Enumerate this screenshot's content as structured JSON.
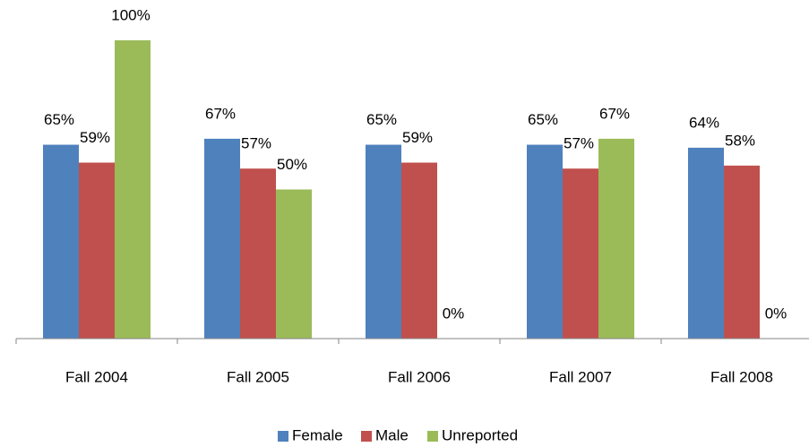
{
  "chart_data": {
    "type": "bar",
    "categories": [
      "Fall 2004",
      "Fall 2005",
      "Fall 2006",
      "Fall 2007",
      "Fall 2008"
    ],
    "series": [
      {
        "name": "Female",
        "color": "#4f81bd",
        "values": [
          65,
          67,
          65,
          65,
          64
        ],
        "value_labels": [
          "65%",
          "67%",
          "65%",
          "65%",
          "64%"
        ]
      },
      {
        "name": "Male",
        "color": "#c0504d",
        "values": [
          59,
          57,
          59,
          57,
          58
        ],
        "value_labels": [
          "59%",
          "57%",
          "59%",
          "57%",
          "58%"
        ]
      },
      {
        "name": "Unreported",
        "color": "#9bbb59",
        "values": [
          100,
          50,
          0,
          67,
          0
        ],
        "value_labels": [
          "100%",
          "50%",
          "0%",
          "67%",
          "0%"
        ]
      }
    ],
    "legend": "bottom"
  }
}
